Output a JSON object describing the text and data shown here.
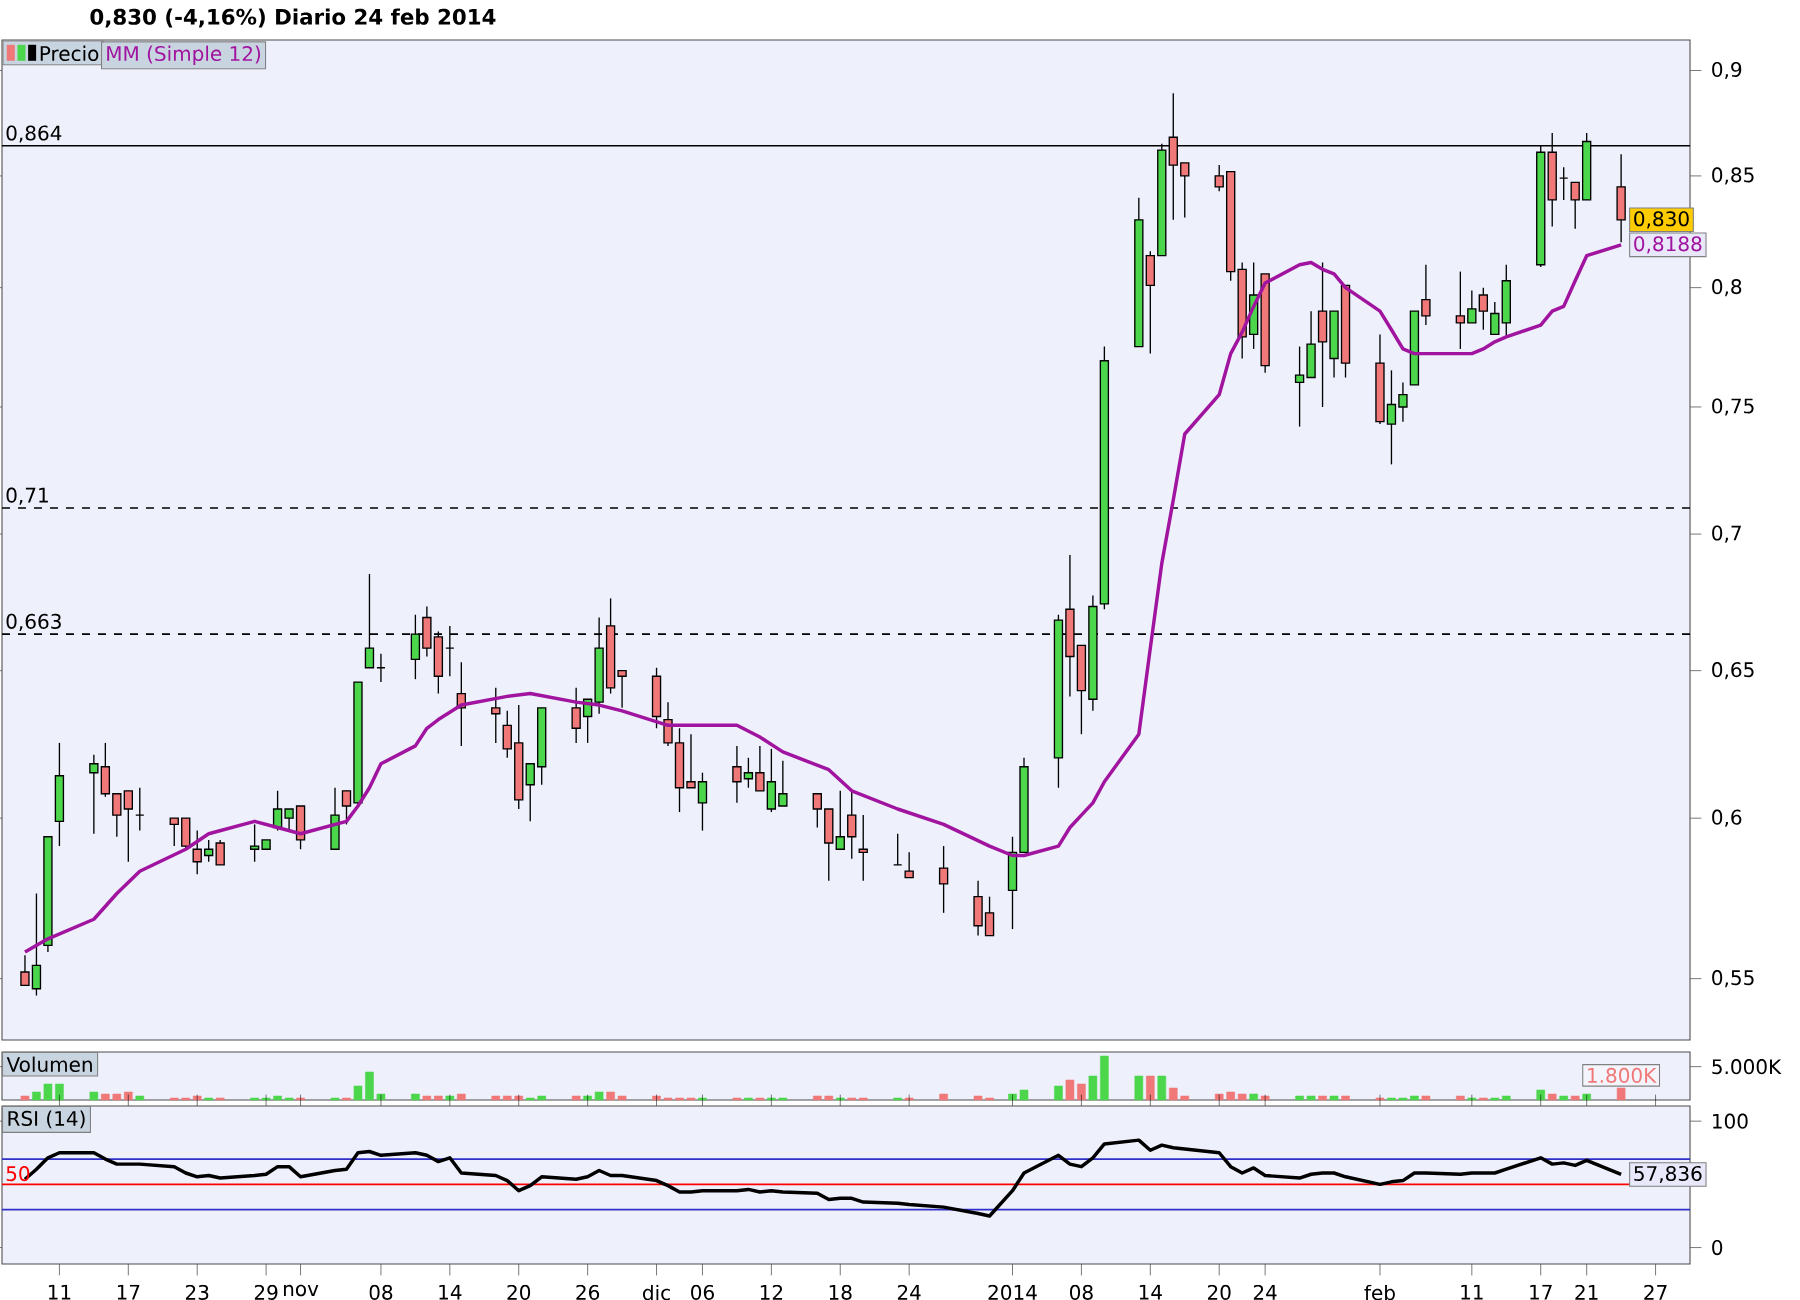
{
  "chart_data": [
    {
      "type": "candlestick",
      "title": "0,830 (-4,16%)   Diario   24 feb 2014",
      "log": "y",
      "legend": "top left",
      "tick_labels": "y",
      "x": [
        "2013-10-08",
        "2013-10-09",
        "2013-10-10",
        "2013-10-11",
        "2013-10-14",
        "2013-10-15",
        "2013-10-16",
        "2013-10-17",
        "2013-10-18",
        "2013-10-21",
        "2013-10-22",
        "2013-10-23",
        "2013-10-24",
        "2013-10-25",
        "2013-10-28",
        "2013-10-29",
        "2013-10-30",
        "2013-10-31",
        "2013-11-01",
        "2013-11-04",
        "2013-11-05",
        "2013-11-06",
        "2013-11-07",
        "2013-11-08",
        "2013-11-11",
        "2013-11-12",
        "2013-11-13",
        "2013-11-14",
        "2013-11-15",
        "2013-11-18",
        "2013-11-19",
        "2013-11-20",
        "2013-11-21",
        "2013-11-22",
        "2013-11-25",
        "2013-11-26",
        "2013-11-27",
        "2013-11-28",
        "2013-11-29",
        "2013-12-02",
        "2013-12-03",
        "2013-12-04",
        "2013-12-05",
        "2013-12-06",
        "2013-12-09",
        "2013-12-10",
        "2013-12-11",
        "2013-12-12",
        "2013-12-13",
        "2013-12-16",
        "2013-12-17",
        "2013-12-18",
        "2013-12-19",
        "2013-12-20",
        "2013-12-23",
        "2013-12-24",
        "2013-12-27",
        "2013-12-30",
        "2013-12-31",
        "2014-01-02",
        "2014-01-03",
        "2014-01-06",
        "2014-01-07",
        "2014-01-08",
        "2014-01-09",
        "2014-01-10",
        "2014-01-13",
        "2014-01-14",
        "2014-01-15",
        "2014-01-16",
        "2014-01-17",
        "2014-01-20",
        "2014-01-21",
        "2014-01-22",
        "2014-01-23",
        "2014-01-24",
        "2014-01-27",
        "2014-01-28",
        "2014-01-29",
        "2014-01-30",
        "2014-01-31",
        "2014-02-03",
        "2014-02-04",
        "2014-02-05",
        "2014-02-06",
        "2014-02-07",
        "2014-02-10",
        "2014-02-11",
        "2014-02-12",
        "2014-02-13",
        "2014-02-14",
        "2014-02-17",
        "2014-02-18",
        "2014-02-19",
        "2014-02-20",
        "2014-02-21",
        "2014-02-24"
      ],
      "xlim": [
        "2013-10-06",
        "2014-03-02"
      ],
      "ylim": [
        0.532,
        0.915
      ],
      "yticks": [
        {
          "value": 0.55,
          "label": "0,55"
        },
        {
          "value": 0.6,
          "label": "0,6"
        },
        {
          "value": 0.65,
          "label": "0,65"
        },
        {
          "value": 0.7,
          "label": "0,7"
        },
        {
          "value": 0.75,
          "label": "0,75"
        },
        {
          "value": 0.8,
          "label": "0,8"
        },
        {
          "value": 0.85,
          "label": "0,85"
        },
        {
          "value": 0.9,
          "label": "0,9"
        }
      ],
      "ref_lines": [
        {
          "axis": "y",
          "value": 0.864,
          "label": "0,864",
          "color": "#000000",
          "line_style": "solid"
        },
        {
          "axis": "y",
          "value": 0.71,
          "label": "0,71",
          "color": "#000000",
          "line_style": "dashed"
        },
        {
          "axis": "y",
          "value": 0.663,
          "label": "0,663",
          "color": "#000000",
          "line_style": "dashed"
        }
      ],
      "series": [
        {
          "type": "candlestick",
          "name": "Precio",
          "ohlc": [
            [
              0.552,
              0.557,
              0.548,
              0.548
            ],
            [
              0.547,
              0.576,
              0.545,
              0.554
            ],
            [
              0.56,
              0.594,
              0.558,
              0.594
            ],
            [
              0.599,
              0.625,
              0.591,
              0.614
            ],
            [
              0.615,
              0.621,
              0.595,
              0.618
            ],
            [
              0.617,
              0.625,
              0.607,
              0.608
            ],
            [
              0.608,
              0.608,
              0.594,
              0.601
            ],
            [
              0.609,
              0.609,
              0.586,
              0.603
            ],
            [
              0.601,
              0.61,
              0.596,
              0.601
            ],
            [
              0.6,
              0.6,
              0.591,
              0.598
            ],
            [
              0.6,
              0.6,
              0.59,
              0.591
            ],
            [
              0.59,
              0.596,
              0.582,
              0.586
            ],
            [
              0.588,
              0.593,
              0.586,
              0.59
            ],
            [
              0.592,
              0.593,
              0.585,
              0.585
            ],
            [
              0.59,
              0.598,
              0.586,
              0.591
            ],
            [
              0.59,
              0.593,
              0.59,
              0.593
            ],
            [
              0.597,
              0.609,
              0.596,
              0.603
            ],
            [
              0.6,
              0.603,
              0.596,
              0.603
            ],
            [
              0.604,
              0.604,
              0.59,
              0.593
            ],
            [
              0.59,
              0.61,
              0.59,
              0.601
            ],
            [
              0.609,
              0.609,
              0.598,
              0.604
            ],
            [
              0.605,
              0.646,
              0.604,
              0.646
            ],
            [
              0.651,
              0.685,
              0.651,
              0.658
            ],
            [
              0.651,
              0.656,
              0.646,
              0.651
            ],
            [
              0.654,
              0.67,
              0.647,
              0.663
            ],
            [
              0.669,
              0.673,
              0.655,
              0.658
            ],
            [
              0.662,
              0.664,
              0.642,
              0.648
            ],
            [
              0.658,
              0.666,
              0.648,
              0.658
            ],
            [
              0.642,
              0.653,
              0.624,
              0.637
            ],
            [
              0.637,
              0.644,
              0.625,
              0.635
            ],
            [
              0.631,
              0.636,
              0.62,
              0.623
            ],
            [
              0.625,
              0.638,
              0.603,
              0.606
            ],
            [
              0.611,
              0.618,
              0.599,
              0.618
            ],
            [
              0.617,
              0.637,
              0.611,
              0.637
            ],
            [
              0.637,
              0.644,
              0.625,
              0.63
            ],
            [
              0.634,
              0.64,
              0.625,
              0.64
            ],
            [
              0.639,
              0.669,
              0.635,
              0.658
            ],
            [
              0.666,
              0.676,
              0.642,
              0.644
            ],
            [
              0.65,
              0.65,
              0.637,
              0.648
            ],
            [
              0.648,
              0.651,
              0.63,
              0.634
            ],
            [
              0.633,
              0.639,
              0.624,
              0.625
            ],
            [
              0.625,
              0.63,
              0.602,
              0.61
            ],
            [
              0.612,
              0.628,
              0.61,
              0.61
            ],
            [
              0.605,
              0.615,
              0.596,
              0.612
            ],
            [
              0.617,
              0.624,
              0.605,
              0.612
            ],
            [
              0.613,
              0.62,
              0.61,
              0.615
            ],
            [
              0.615,
              0.624,
              0.609,
              0.609
            ],
            [
              0.603,
              0.623,
              0.602,
              0.612
            ],
            [
              0.604,
              0.619,
              0.604,
              0.608
            ],
            [
              0.608,
              0.608,
              0.597,
              0.603
            ],
            [
              0.603,
              0.603,
              0.58,
              0.592
            ],
            [
              0.59,
              0.609,
              0.59,
              0.594
            ],
            [
              0.601,
              0.609,
              0.587,
              0.594
            ],
            [
              0.59,
              0.601,
              0.58,
              0.589
            ],
            [
              0.585,
              0.595,
              0.585,
              0.585
            ],
            [
              0.583,
              0.589,
              0.581,
              0.581
            ],
            [
              0.584,
              0.591,
              0.57,
              0.579
            ],
            [
              0.575,
              0.58,
              0.563,
              0.566
            ],
            [
              0.57,
              0.575,
              0.563,
              0.563
            ],
            [
              0.577,
              0.594,
              0.565,
              0.589
            ],
            [
              0.589,
              0.62,
              0.589,
              0.617
            ],
            [
              0.62,
              0.67,
              0.61,
              0.668
            ],
            [
              0.672,
              0.692,
              0.641,
              0.655
            ],
            [
              0.659,
              0.659,
              0.628,
              0.643
            ],
            [
              0.64,
              0.677,
              0.636,
              0.673
            ],
            [
              0.674,
              0.775,
              0.672,
              0.769
            ],
            [
              0.775,
              0.84,
              0.775,
              0.83
            ],
            [
              0.814,
              0.816,
              0.772,
              0.801
            ],
            [
              0.814,
              0.865,
              0.814,
              0.862
            ],
            [
              0.868,
              0.889,
              0.83,
              0.855
            ],
            [
              0.856,
              0.856,
              0.831,
              0.85
            ],
            [
              0.85,
              0.855,
              0.843,
              0.845
            ],
            [
              0.852,
              0.852,
              0.803,
              0.807
            ],
            [
              0.808,
              0.811,
              0.77,
              0.779
            ],
            [
              0.78,
              0.811,
              0.774,
              0.797
            ],
            [
              0.806,
              0.806,
              0.764,
              0.767
            ],
            [
              0.76,
              0.775,
              0.742,
              0.763
            ],
            [
              0.762,
              0.79,
              0.762,
              0.776
            ],
            [
              0.79,
              0.811,
              0.75,
              0.777
            ],
            [
              0.77,
              0.79,
              0.762,
              0.79
            ],
            [
              0.801,
              0.801,
              0.762,
              0.768
            ],
            [
              0.768,
              0.78,
              0.743,
              0.744
            ],
            [
              0.743,
              0.765,
              0.727,
              0.751
            ],
            [
              0.75,
              0.76,
              0.744,
              0.755
            ],
            [
              0.759,
              0.79,
              0.759,
              0.79
            ],
            [
              0.795,
              0.81,
              0.784,
              0.788
            ],
            [
              0.788,
              0.807,
              0.774,
              0.785
            ],
            [
              0.785,
              0.799,
              0.785,
              0.791
            ],
            [
              0.797,
              0.8,
              0.782,
              0.79
            ],
            [
              0.78,
              0.794,
              0.78,
              0.789
            ],
            [
              0.785,
              0.81,
              0.779,
              0.803
            ],
            [
              0.81,
              0.864,
              0.809,
              0.861
            ],
            [
              0.861,
              0.87,
              0.827,
              0.839
            ],
            [
              0.849,
              0.854,
              0.839,
              0.849
            ],
            [
              0.847,
              0.847,
              0.826,
              0.839
            ],
            [
              0.839,
              0.87,
              0.839,
              0.866
            ],
            [
              0.845,
              0.86,
              0.82,
              0.83
            ]
          ],
          "colors": [
            "#f07878",
            "#4cd64c",
            "#4cd64c",
            "#4cd64c",
            "#4cd64c",
            "#f07878",
            "#f07878",
            "#f07878",
            "#000000",
            "#f07878",
            "#f07878",
            "#f07878",
            "#4cd64c",
            "#f07878",
            "#4cd64c",
            "#4cd64c",
            "#4cd64c",
            "#4cd64c",
            "#f07878",
            "#4cd64c",
            "#f07878",
            "#4cd64c",
            "#4cd64c",
            "#000000",
            "#4cd64c",
            "#f07878",
            "#f07878",
            "#000000",
            "#f07878",
            "#f07878",
            "#f07878",
            "#f07878",
            "#4cd64c",
            "#4cd64c",
            "#f07878",
            "#4cd64c",
            "#4cd64c",
            "#f07878",
            "#f07878",
            "#f07878",
            "#f07878",
            "#f07878",
            "#f07878",
            "#4cd64c",
            "#f07878",
            "#4cd64c",
            "#f07878",
            "#4cd64c",
            "#4cd64c",
            "#f07878",
            "#f07878",
            "#4cd64c",
            "#f07878",
            "#f07878",
            "#000000",
            "#f07878",
            "#f07878",
            "#f07878",
            "#f07878",
            "#4cd64c",
            "#4cd64c",
            "#4cd64c",
            "#f07878",
            "#f07878",
            "#4cd64c",
            "#4cd64c",
            "#4cd64c",
            "#f07878",
            "#4cd64c",
            "#f07878",
            "#f07878",
            "#f07878",
            "#f07878",
            "#f07878",
            "#4cd64c",
            "#f07878",
            "#4cd64c",
            "#4cd64c",
            "#f07878",
            "#4cd64c",
            "#f07878",
            "#f07878",
            "#4cd64c",
            "#4cd64c",
            "#4cd64c",
            "#f07878",
            "#f07878",
            "#4cd64c",
            "#f07878",
            "#4cd64c",
            "#4cd64c",
            "#4cd64c",
            "#f07878",
            "#000000",
            "#f07878",
            "#4cd64c",
            "#f07878"
          ],
          "value_labels": [
            null,
            null,
            null,
            null,
            null,
            null,
            null,
            null,
            null,
            null,
            null,
            null,
            null,
            null,
            null,
            null,
            null,
            null,
            null,
            null,
            null,
            null,
            null,
            null,
            null,
            null,
            null,
            null,
            null,
            null,
            null,
            null,
            null,
            null,
            null,
            null,
            null,
            null,
            null,
            null,
            null,
            null,
            null,
            null,
            null,
            null,
            null,
            null,
            null,
            null,
            null,
            null,
            null,
            null,
            null,
            null,
            null,
            null,
            null,
            null,
            null,
            null,
            null,
            null,
            null,
            null,
            null,
            null,
            null,
            null,
            null,
            null,
            null,
            null,
            null,
            null,
            null,
            null,
            null,
            null,
            null,
            null,
            null,
            null,
            null,
            null,
            null,
            null,
            null,
            null,
            null,
            null,
            null,
            null,
            null,
            null,
            "0,830"
          ]
        },
        {
          "type": "line",
          "name": "MM (Simple 12)",
          "color": "#a0149f",
          "x": [
            "2013-10-08",
            "2013-10-10",
            "2013-10-14",
            "2013-10-16",
            "2013-10-18",
            "2013-10-22",
            "2013-10-24",
            "2013-10-28",
            "2013-10-30",
            "2013-11-01",
            "2013-11-05",
            "2013-11-06",
            "2013-11-07",
            "2013-11-08",
            "2013-11-11",
            "2013-11-12",
            "2013-11-13",
            "2013-11-15",
            "2013-11-19",
            "2013-11-21",
            "2013-11-25",
            "2013-11-27",
            "2013-11-29",
            "2013-12-03",
            "2013-12-05",
            "2013-12-09",
            "2013-12-11",
            "2013-12-13",
            "2013-12-17",
            "2013-12-19",
            "2013-12-23",
            "2013-12-27",
            "2013-12-31",
            "2014-01-02",
            "2014-01-03",
            "2014-01-06",
            "2014-01-07",
            "2014-01-08",
            "2014-01-09",
            "2014-01-10",
            "2014-01-13",
            "2014-01-14",
            "2014-01-15",
            "2014-01-16",
            "2014-01-17",
            "2014-01-20",
            "2014-01-21",
            "2014-01-22",
            "2014-01-23",
            "2014-01-24",
            "2014-01-27",
            "2014-01-28",
            "2014-01-29",
            "2014-01-30",
            "2014-01-31",
            "2014-02-03",
            "2014-02-04",
            "2014-02-05",
            "2014-02-06",
            "2014-02-07",
            "2014-02-10",
            "2014-02-11",
            "2014-02-12",
            "2014-02-13",
            "2014-02-14",
            "2014-02-17",
            "2014-02-18",
            "2014-02-19",
            "2014-02-20",
            "2014-02-21",
            "2014-02-24"
          ],
          "values": [
            0.558,
            0.562,
            0.568,
            0.576,
            0.583,
            0.59,
            0.595,
            0.599,
            0.597,
            0.595,
            0.599,
            0.604,
            0.61,
            0.618,
            0.624,
            0.63,
            0.633,
            0.638,
            0.641,
            0.642,
            0.639,
            0.638,
            0.636,
            0.631,
            0.631,
            0.631,
            0.627,
            0.622,
            0.616,
            0.609,
            0.603,
            0.598,
            0.591,
            0.588,
            0.588,
            0.591,
            0.597,
            0.601,
            0.605,
            0.612,
            0.628,
            0.658,
            0.689,
            0.713,
            0.739,
            0.755,
            0.772,
            0.781,
            0.792,
            0.802,
            0.81,
            0.811,
            0.808,
            0.806,
            0.8,
            0.79,
            0.782,
            0.774,
            0.772,
            0.772,
            0.772,
            0.772,
            0.774,
            0.777,
            0.779,
            0.784,
            0.79,
            0.792,
            0.803,
            0.814,
            0.8188
          ],
          "value_labels": [
            null,
            null,
            null,
            null,
            null,
            null,
            null,
            null,
            null,
            null,
            null,
            null,
            null,
            null,
            null,
            null,
            null,
            null,
            null,
            null,
            null,
            null,
            null,
            null,
            null,
            null,
            null,
            null,
            null,
            null,
            null,
            null,
            null,
            null,
            null,
            null,
            null,
            null,
            null,
            null,
            null,
            null,
            null,
            null,
            null,
            null,
            null,
            null,
            null,
            null,
            null,
            null,
            null,
            null,
            null,
            null,
            null,
            null,
            null,
            null,
            null,
            null,
            null,
            null,
            null,
            null,
            null,
            null,
            null,
            null,
            "0,8188"
          ]
        }
      ]
    },
    {
      "type": "bar",
      "title": "Volumen",
      "tick_labels": "y",
      "ylim": [
        0,
        7200
      ],
      "yticks": [
        {
          "value": 5000,
          "label": "5.000K"
        }
      ],
      "x": [
        "2013-10-08",
        "2013-10-09",
        "2013-10-10",
        "2013-10-11",
        "2013-10-14",
        "2013-10-15",
        "2013-10-16",
        "2013-10-17",
        "2013-10-18",
        "2013-10-21",
        "2013-10-22",
        "2013-10-23",
        "2013-10-24",
        "2013-10-25",
        "2013-10-28",
        "2013-10-29",
        "2013-10-30",
        "2013-10-31",
        "2013-11-01",
        "2013-11-04",
        "2013-11-05",
        "2013-11-06",
        "2013-11-07",
        "2013-11-08",
        "2013-11-11",
        "2013-11-12",
        "2013-11-13",
        "2013-11-14",
        "2013-11-15",
        "2013-11-18",
        "2013-11-19",
        "2013-11-20",
        "2013-11-21",
        "2013-11-22",
        "2013-11-25",
        "2013-11-26",
        "2013-11-27",
        "2013-11-28",
        "2013-11-29",
        "2013-12-02",
        "2013-12-03",
        "2013-12-04",
        "2013-12-05",
        "2013-12-06",
        "2013-12-09",
        "2013-12-10",
        "2013-12-11",
        "2013-12-12",
        "2013-12-13",
        "2013-12-16",
        "2013-12-17",
        "2013-12-18",
        "2013-12-19",
        "2013-12-20",
        "2013-12-23",
        "2013-12-24",
        "2013-12-27",
        "2013-12-30",
        "2013-12-31",
        "2014-01-02",
        "2014-01-03",
        "2014-01-06",
        "2014-01-07",
        "2014-01-08",
        "2014-01-09",
        "2014-01-10",
        "2014-01-13",
        "2014-01-14",
        "2014-01-15",
        "2014-01-16",
        "2014-01-17",
        "2014-01-20",
        "2014-01-21",
        "2014-01-22",
        "2014-01-23",
        "2014-01-24",
        "2014-01-27",
        "2014-01-28",
        "2014-01-29",
        "2014-01-30",
        "2014-01-31",
        "2014-02-03",
        "2014-02-04",
        "2014-02-05",
        "2014-02-06",
        "2014-02-07",
        "2014-02-10",
        "2014-02-11",
        "2014-02-12",
        "2014-02-13",
        "2014-02-14",
        "2014-02-17",
        "2014-02-18",
        "2014-02-19",
        "2014-02-20",
        "2014-02-21",
        "2014-02-24"
      ],
      "xlim": [
        "2013-10-06",
        "2014-03-02"
      ],
      "values": [
        600,
        1200,
        2400,
        2400,
        1200,
        900,
        900,
        1200,
        600,
        300,
        300,
        600,
        300,
        300,
        300,
        300,
        600,
        300,
        300,
        300,
        300,
        2100,
        4200,
        900,
        900,
        600,
        600,
        600,
        900,
        600,
        600,
        600,
        300,
        600,
        600,
        600,
        1200,
        1200,
        600,
        600,
        300,
        300,
        300,
        300,
        300,
        300,
        300,
        300,
        300,
        600,
        600,
        300,
        300,
        300,
        300,
        300,
        900,
        600,
        300,
        900,
        1500,
        2100,
        3000,
        2400,
        3600,
        6600,
        3600,
        3600,
        3600,
        1800,
        600,
        900,
        1200,
        900,
        900,
        600,
        600,
        600,
        600,
        600,
        600,
        300,
        300,
        300,
        600,
        600,
        600,
        300,
        300,
        300,
        600,
        1500,
        900,
        600,
        600,
        900,
        1800
      ],
      "colors": [
        "#f07878",
        "#4cd64c",
        "#4cd64c",
        "#4cd64c",
        "#4cd64c",
        "#f07878",
        "#f07878",
        "#f07878",
        "#4cd64c",
        "#f07878",
        "#f07878",
        "#f07878",
        "#4cd64c",
        "#f07878",
        "#4cd64c",
        "#4cd64c",
        "#4cd64c",
        "#4cd64c",
        "#f07878",
        "#4cd64c",
        "#f07878",
        "#4cd64c",
        "#4cd64c",
        "#4cd64c",
        "#4cd64c",
        "#f07878",
        "#f07878",
        "#4cd64c",
        "#f07878",
        "#f07878",
        "#f07878",
        "#f07878",
        "#4cd64c",
        "#4cd64c",
        "#f07878",
        "#4cd64c",
        "#4cd64c",
        "#f07878",
        "#f07878",
        "#f07878",
        "#f07878",
        "#f07878",
        "#f07878",
        "#4cd64c",
        "#f07878",
        "#4cd64c",
        "#f07878",
        "#4cd64c",
        "#4cd64c",
        "#f07878",
        "#f07878",
        "#4cd64c",
        "#f07878",
        "#f07878",
        "#4cd64c",
        "#f07878",
        "#f07878",
        "#f07878",
        "#f07878",
        "#4cd64c",
        "#4cd64c",
        "#4cd64c",
        "#f07878",
        "#f07878",
        "#4cd64c",
        "#4cd64c",
        "#4cd64c",
        "#f07878",
        "#4cd64c",
        "#f07878",
        "#f07878",
        "#f07878",
        "#f07878",
        "#f07878",
        "#4cd64c",
        "#f07878",
        "#4cd64c",
        "#4cd64c",
        "#f07878",
        "#4cd64c",
        "#f07878",
        "#f07878",
        "#4cd64c",
        "#4cd64c",
        "#4cd64c",
        "#f07878",
        "#f07878",
        "#4cd64c",
        "#f07878",
        "#4cd64c",
        "#4cd64c",
        "#4cd64c",
        "#f07878",
        "#4cd64c",
        "#f07878",
        "#4cd64c",
        "#f07878"
      ],
      "value_labels": [
        null,
        null,
        null,
        null,
        null,
        null,
        null,
        null,
        null,
        null,
        null,
        null,
        null,
        null,
        null,
        null,
        null,
        null,
        null,
        null,
        null,
        null,
        null,
        null,
        null,
        null,
        null,
        null,
        null,
        null,
        null,
        null,
        null,
        null,
        null,
        null,
        null,
        null,
        null,
        null,
        null,
        null,
        null,
        null,
        null,
        null,
        null,
        null,
        null,
        null,
        null,
        null,
        null,
        null,
        null,
        null,
        null,
        null,
        null,
        null,
        null,
        null,
        null,
        null,
        null,
        null,
        null,
        null,
        null,
        null,
        null,
        null,
        null,
        null,
        null,
        null,
        null,
        null,
        null,
        null,
        null,
        null,
        null,
        null,
        null,
        null,
        null,
        null,
        null,
        null,
        null,
        null,
        null,
        null,
        null,
        null,
        "1.800K"
      ]
    },
    {
      "type": "line",
      "title": "RSI (14)",
      "x": [
        "2013-10-08",
        "2013-10-09",
        "2013-10-10",
        "2013-10-11",
        "2013-10-14",
        "2013-10-15",
        "2013-10-16",
        "2013-10-17",
        "2013-10-18",
        "2013-10-21",
        "2013-10-22",
        "2013-10-23",
        "2013-10-24",
        "2013-10-25",
        "2013-10-28",
        "2013-10-29",
        "2013-10-30",
        "2013-10-31",
        "2013-11-01",
        "2013-11-04",
        "2013-11-05",
        "2013-11-06",
        "2013-11-07",
        "2013-11-08",
        "2013-11-11",
        "2013-11-12",
        "2013-11-13",
        "2013-11-14",
        "2013-11-15",
        "2013-11-18",
        "2013-11-19",
        "2013-11-20",
        "2013-11-21",
        "2013-11-22",
        "2013-11-25",
        "2013-11-26",
        "2013-11-27",
        "2013-11-28",
        "2013-11-29",
        "2013-12-02",
        "2013-12-03",
        "2013-12-04",
        "2013-12-05",
        "2013-12-06",
        "2013-12-09",
        "2013-12-10",
        "2013-12-11",
        "2013-12-12",
        "2013-12-13",
        "2013-12-16",
        "2013-12-17",
        "2013-12-18",
        "2013-12-19",
        "2013-12-20",
        "2013-12-23",
        "2013-12-24",
        "2013-12-27",
        "2013-12-30",
        "2013-12-31",
        "2014-01-02",
        "2014-01-03",
        "2014-01-06",
        "2014-01-07",
        "2014-01-08",
        "2014-01-09",
        "2014-01-10",
        "2014-01-13",
        "2014-01-14",
        "2014-01-15",
        "2014-01-16",
        "2014-01-17",
        "2014-01-20",
        "2014-01-21",
        "2014-01-22",
        "2014-01-23",
        "2014-01-24",
        "2014-01-27",
        "2014-01-28",
        "2014-01-29",
        "2014-01-30",
        "2014-01-31",
        "2014-02-03",
        "2014-02-04",
        "2014-02-05",
        "2014-02-06",
        "2014-02-07",
        "2014-02-10",
        "2014-02-11",
        "2014-02-12",
        "2014-02-13",
        "2014-02-14",
        "2014-02-17",
        "2014-02-18",
        "2014-02-19",
        "2014-02-20",
        "2014-02-21",
        "2014-02-24"
      ],
      "xlim": [
        "2013-10-06",
        "2014-03-02"
      ],
      "xticks": [
        {
          "value": "2013-10-11",
          "label": "11"
        },
        {
          "value": "2013-10-17",
          "label": "17"
        },
        {
          "value": "2013-10-23",
          "label": "23"
        },
        {
          "value": "2013-10-29",
          "label": "29"
        },
        {
          "value": "2013-11-01",
          "label": "nov"
        },
        {
          "value": "2013-11-08",
          "label": "08"
        },
        {
          "value": "2013-11-14",
          "label": "14"
        },
        {
          "value": "2013-11-20",
          "label": "20"
        },
        {
          "value": "2013-11-26",
          "label": "26"
        },
        {
          "value": "2013-12-02",
          "label": "dic"
        },
        {
          "value": "2013-12-06",
          "label": "06"
        },
        {
          "value": "2013-12-12",
          "label": "12"
        },
        {
          "value": "2013-12-18",
          "label": "18"
        },
        {
          "value": "2013-12-24",
          "label": "24"
        },
        {
          "value": "2014-01-02",
          "label": "2014"
        },
        {
          "value": "2014-01-08",
          "label": "08"
        },
        {
          "value": "2014-01-14",
          "label": "14"
        },
        {
          "value": "2014-01-20",
          "label": "20"
        },
        {
          "value": "2014-01-24",
          "label": "24"
        },
        {
          "value": "2014-02-03",
          "label": "feb"
        },
        {
          "value": "2014-02-11",
          "label": "11"
        },
        {
          "value": "2014-02-17",
          "label": "17"
        },
        {
          "value": "2014-02-21",
          "label": "21"
        },
        {
          "value": "2014-02-27",
          "label": "27"
        }
      ],
      "ylim": [
        -13,
        112
      ],
      "yticks": [
        0,
        100
      ],
      "ref_lines": [
        {
          "axis": "y",
          "value": 70,
          "color": "#3030c8"
        },
        {
          "axis": "y",
          "value": 30,
          "color": "#3030c8"
        },
        {
          "axis": "y",
          "value": 50,
          "color": "#ff0000",
          "label": "50"
        }
      ],
      "series": [
        {
          "color": "#000000",
          "values": [
            54,
            62,
            71,
            75,
            75,
            70,
            66,
            66,
            66,
            64,
            59,
            56,
            57,
            55,
            57,
            58,
            64,
            64,
            56,
            61,
            62,
            75,
            76,
            73,
            75,
            73,
            68,
            71,
            59,
            57,
            53,
            45,
            49,
            56,
            54,
            56,
            61,
            57,
            57,
            53,
            49,
            44,
            44,
            45,
            45,
            46,
            44,
            45,
            44,
            43,
            38,
            39,
            39,
            36,
            35,
            34,
            32,
            27,
            25,
            45,
            59,
            73,
            66,
            64,
            71,
            82,
            85,
            77,
            81,
            79,
            78,
            75,
            64,
            59,
            63,
            57,
            55,
            58,
            59,
            59,
            56,
            50,
            52,
            53,
            59,
            59,
            58,
            59,
            59,
            59,
            62,
            71,
            66,
            67,
            65,
            69,
            57.836
          ],
          "value_labels": [
            null,
            null,
            null,
            null,
            null,
            null,
            null,
            null,
            null,
            null,
            null,
            null,
            null,
            null,
            null,
            null,
            null,
            null,
            null,
            null,
            null,
            null,
            null,
            null,
            null,
            null,
            null,
            null,
            null,
            null,
            null,
            null,
            null,
            null,
            null,
            null,
            null,
            null,
            null,
            null,
            null,
            null,
            null,
            null,
            null,
            null,
            null,
            null,
            null,
            null,
            null,
            null,
            null,
            null,
            null,
            null,
            null,
            null,
            null,
            null,
            null,
            null,
            null,
            null,
            null,
            null,
            null,
            null,
            null,
            null,
            null,
            null,
            null,
            null,
            null,
            null,
            null,
            null,
            null,
            null,
            null,
            null,
            null,
            null,
            null,
            null,
            null,
            null,
            null,
            null,
            null,
            null,
            null,
            null,
            null,
            null,
            "57,836"
          ]
        }
      ]
    }
  ]
}
